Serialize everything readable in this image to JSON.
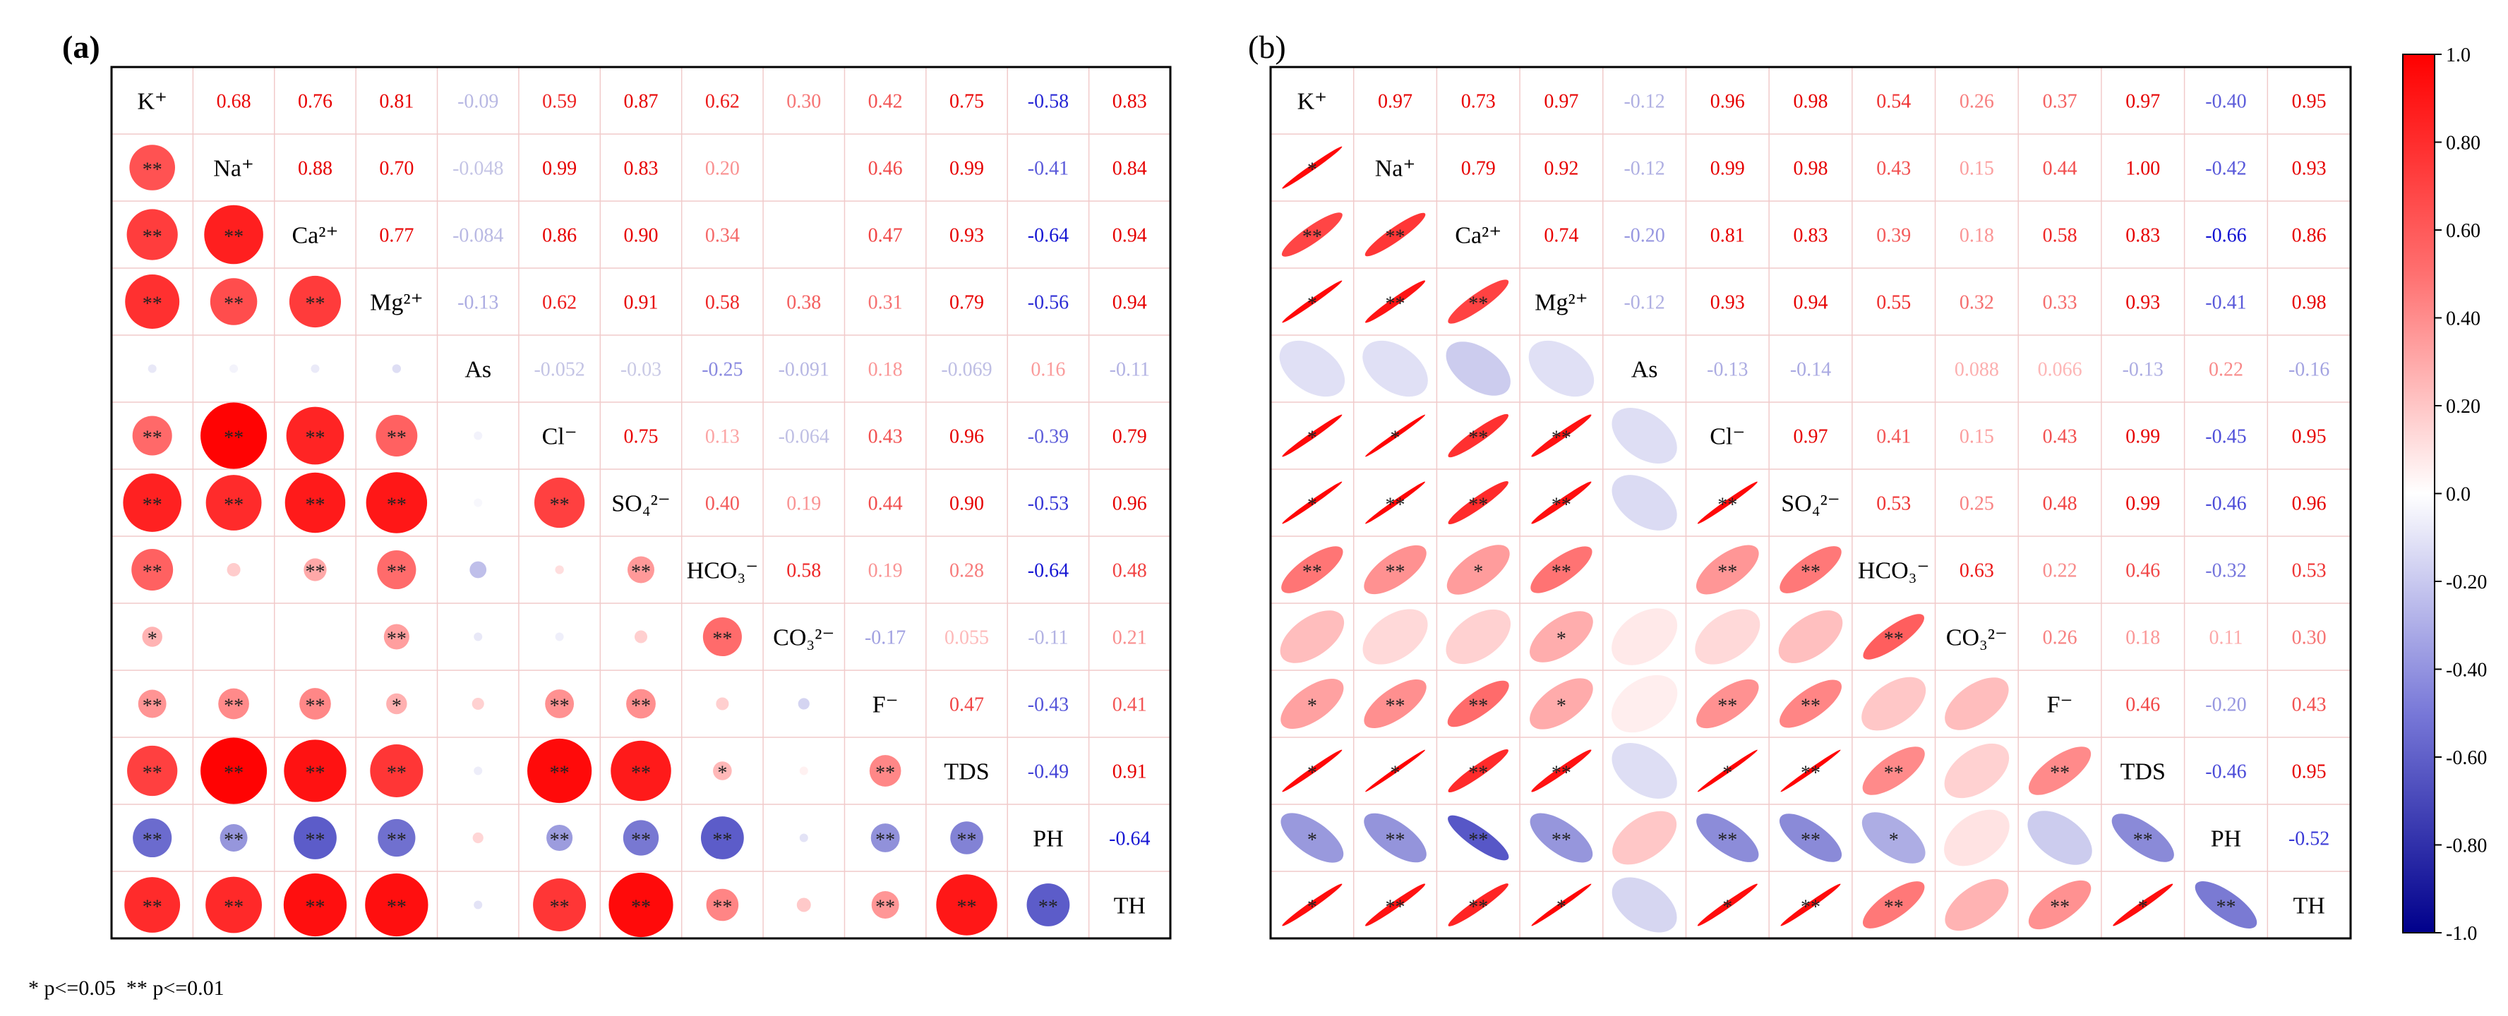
{
  "chart_data": [
    {
      "type": "heatmap",
      "panel_label": "(a)",
      "shape": "circle",
      "variables": [
        "K⁺",
        "Na⁺",
        "Ca²⁺",
        "Mg²⁺",
        "As",
        "Cl⁻",
        "SO₄²⁻",
        "HCO₃⁻",
        "CO₃²⁻",
        "F⁻",
        "TDS",
        "PH",
        "TH"
      ],
      "upper_values": [
        [
          null,
          0.68,
          0.76,
          0.81,
          -0.09,
          0.59,
          0.87,
          0.62,
          0.3,
          0.42,
          0.75,
          -0.58,
          0.83
        ],
        [
          null,
          null,
          0.88,
          0.7,
          -0.048,
          0.99,
          0.83,
          0.2,
          null,
          0.46,
          0.99,
          -0.41,
          0.84
        ],
        [
          null,
          null,
          null,
          0.77,
          -0.084,
          0.86,
          0.9,
          0.34,
          null,
          0.47,
          0.93,
          -0.64,
          0.94
        ],
        [
          null,
          null,
          null,
          null,
          -0.13,
          0.62,
          0.91,
          0.58,
          0.38,
          0.31,
          0.79,
          -0.56,
          0.94
        ],
        [
          null,
          null,
          null,
          null,
          null,
          -0.052,
          -0.03,
          -0.25,
          -0.091,
          0.18,
          -0.069,
          0.16,
          -0.11
        ],
        [
          null,
          null,
          null,
          null,
          null,
          null,
          0.75,
          0.13,
          -0.064,
          0.43,
          0.96,
          -0.39,
          0.79
        ],
        [
          null,
          null,
          null,
          null,
          null,
          null,
          null,
          0.4,
          0.19,
          0.44,
          0.9,
          -0.53,
          0.96
        ],
        [
          null,
          null,
          null,
          null,
          null,
          null,
          null,
          null,
          0.58,
          0.19,
          0.28,
          -0.64,
          0.48
        ],
        [
          null,
          null,
          null,
          null,
          null,
          null,
          null,
          null,
          null,
          -0.17,
          0.055,
          -0.11,
          0.21
        ],
        [
          null,
          null,
          null,
          null,
          null,
          null,
          null,
          null,
          null,
          null,
          0.47,
          -0.43,
          0.41
        ],
        [
          null,
          null,
          null,
          null,
          null,
          null,
          null,
          null,
          null,
          null,
          null,
          -0.49,
          0.91
        ],
        [
          null,
          null,
          null,
          null,
          null,
          null,
          null,
          null,
          null,
          null,
          null,
          null,
          -0.64
        ],
        [
          null,
          null,
          null,
          null,
          null,
          null,
          null,
          null,
          null,
          null,
          null,
          null,
          null
        ]
      ],
      "lower_marks": [
        [
          "",
          "",
          "",
          "",
          "",
          "",
          "",
          "",
          "",
          "",
          "",
          "",
          ""
        ],
        [
          "**",
          "",
          "",
          "",
          "",
          "",
          "",
          "",
          "",
          "",
          "",
          "",
          ""
        ],
        [
          "**",
          "**",
          "",
          "",
          "",
          "",
          "",
          "",
          "",
          "",
          "",
          "",
          ""
        ],
        [
          "**",
          "**",
          "**",
          "",
          "",
          "",
          "",
          "",
          "",
          "",
          "",
          "",
          ""
        ],
        [
          "",
          "",
          "",
          "",
          "",
          "",
          "",
          "",
          "",
          "",
          "",
          "",
          ""
        ],
        [
          "**",
          "**",
          "**",
          "**",
          "",
          "",
          "",
          "",
          "",
          "",
          "",
          "",
          ""
        ],
        [
          "**",
          "**",
          "**",
          "**",
          "",
          "**",
          "",
          "",
          "",
          "",
          "",
          "",
          ""
        ],
        [
          "**",
          "",
          "**",
          "**",
          "",
          "",
          "**",
          "",
          "",
          "",
          "",
          "",
          ""
        ],
        [
          "*",
          "",
          "",
          "**",
          "",
          "",
          "",
          "**",
          "",
          "",
          "",
          "",
          ""
        ],
        [
          "**",
          "**",
          "**",
          "*",
          "",
          "**",
          "**",
          "",
          "",
          "",
          "",
          "",
          ""
        ],
        [
          "**",
          "**",
          "**",
          "**",
          "",
          "**",
          "**",
          "*",
          "",
          "**",
          "",
          "",
          ""
        ],
        [
          "**",
          "**",
          "**",
          "**",
          "",
          "**",
          "**",
          "**",
          "",
          "**",
          "**",
          "",
          ""
        ],
        [
          "**",
          "**",
          "**",
          "**",
          "",
          "**",
          "**",
          "**",
          "",
          "**",
          "**",
          "**",
          ""
        ]
      ]
    },
    {
      "type": "heatmap",
      "panel_label": "(b)",
      "shape": "ellipse",
      "variables": [
        "K⁺",
        "Na⁺",
        "Ca²⁺",
        "Mg²⁺",
        "As",
        "Cl⁻",
        "SO₄²⁻",
        "HCO₃⁻",
        "CO₃²⁻",
        "F⁻",
        "TDS",
        "PH",
        "TH"
      ],
      "upper_values": [
        [
          null,
          0.97,
          0.73,
          0.97,
          -0.12,
          0.96,
          0.98,
          0.54,
          0.26,
          0.37,
          0.97,
          -0.4,
          0.95
        ],
        [
          null,
          null,
          0.79,
          0.92,
          -0.12,
          0.99,
          0.98,
          0.43,
          0.15,
          0.44,
          1.0,
          -0.42,
          0.93
        ],
        [
          null,
          null,
          null,
          0.74,
          -0.2,
          0.81,
          0.83,
          0.39,
          0.18,
          0.58,
          0.83,
          -0.66,
          0.86
        ],
        [
          null,
          null,
          null,
          null,
          -0.12,
          0.93,
          0.94,
          0.55,
          0.32,
          0.33,
          0.93,
          -0.41,
          0.98
        ],
        [
          null,
          null,
          null,
          null,
          null,
          -0.13,
          -0.14,
          null,
          0.088,
          0.066,
          -0.13,
          0.22,
          -0.16
        ],
        [
          null,
          null,
          null,
          null,
          null,
          null,
          0.97,
          0.41,
          0.15,
          0.43,
          0.99,
          -0.45,
          0.95
        ],
        [
          null,
          null,
          null,
          null,
          null,
          null,
          null,
          0.53,
          0.25,
          0.48,
          0.99,
          -0.46,
          0.96
        ],
        [
          null,
          null,
          null,
          null,
          null,
          null,
          null,
          null,
          0.63,
          0.22,
          0.46,
          -0.32,
          0.53
        ],
        [
          null,
          null,
          null,
          null,
          null,
          null,
          null,
          null,
          null,
          0.26,
          0.18,
          0.11,
          0.3
        ],
        [
          null,
          null,
          null,
          null,
          null,
          null,
          null,
          null,
          null,
          null,
          0.46,
          -0.2,
          0.43
        ],
        [
          null,
          null,
          null,
          null,
          null,
          null,
          null,
          null,
          null,
          null,
          null,
          -0.46,
          0.95
        ],
        [
          null,
          null,
          null,
          null,
          null,
          null,
          null,
          null,
          null,
          null,
          null,
          null,
          -0.52
        ],
        [
          null,
          null,
          null,
          null,
          null,
          null,
          null,
          null,
          null,
          null,
          null,
          null,
          null
        ]
      ],
      "lower_marks": [
        [
          "",
          "",
          "",
          "",
          "",
          "",
          "",
          "",
          "",
          "",
          "",
          "",
          ""
        ],
        [
          "*",
          "",
          "",
          "",
          "",
          "",
          "",
          "",
          "",
          "",
          "",
          "",
          ""
        ],
        [
          "**",
          "**",
          "",
          "",
          "",
          "",
          "",
          "",
          "",
          "",
          "",
          "",
          ""
        ],
        [
          "*",
          "**",
          "**",
          "",
          "",
          "",
          "",
          "",
          "",
          "",
          "",
          "",
          ""
        ],
        [
          "",
          "",
          "",
          "",
          "",
          "",
          "",
          "",
          "",
          "",
          "",
          "",
          ""
        ],
        [
          "*",
          "*",
          "**",
          "**",
          "",
          "",
          "",
          "",
          "",
          "",
          "",
          "",
          ""
        ],
        [
          "*",
          "**",
          "**",
          "**",
          "",
          "**",
          "",
          "",
          "",
          "",
          "",
          "",
          ""
        ],
        [
          "**",
          "**",
          "*",
          "**",
          "",
          "**",
          "**",
          "",
          "",
          "",
          "",
          "",
          ""
        ],
        [
          "",
          "",
          "",
          "*",
          "",
          "",
          "",
          "**",
          "",
          "",
          "",
          "",
          ""
        ],
        [
          "*",
          "**",
          "**",
          "*",
          "",
          "**",
          "**",
          "",
          "",
          "",
          "",
          "",
          ""
        ],
        [
          "*",
          "*",
          "**",
          "**",
          "",
          "*",
          "**",
          "**",
          "",
          "**",
          "",
          "",
          ""
        ],
        [
          "*",
          "**",
          "**",
          "**",
          "",
          "**",
          "**",
          "*",
          "",
          "",
          "**",
          "",
          ""
        ],
        [
          "*",
          "**",
          "**",
          "*",
          "",
          "*",
          "**",
          "**",
          "",
          "**",
          "*",
          "**",
          ""
        ]
      ]
    }
  ],
  "colorbar": {
    "ticks": [
      1.0,
      0.8,
      0.6,
      0.4,
      0.2,
      0.0,
      -0.2,
      -0.4,
      -0.6,
      -0.8,
      -1.0
    ],
    "tick_labels": [
      "1.0",
      "0.80",
      "0.60",
      "0.40",
      "0.20",
      "0.0",
      "-0.20",
      "-0.40",
      "-0.60",
      "-0.80",
      "-1.0"
    ],
    "range": [
      -1.0,
      1.0
    ]
  },
  "footnote": "* p<=0.05  ** p<=0.01",
  "colors": {
    "positive": "#ff0000",
    "negative": "#0000c0",
    "neutral": "#ffffff",
    "grid": "#f2c8c8",
    "grid_neg": "#cccce8"
  }
}
